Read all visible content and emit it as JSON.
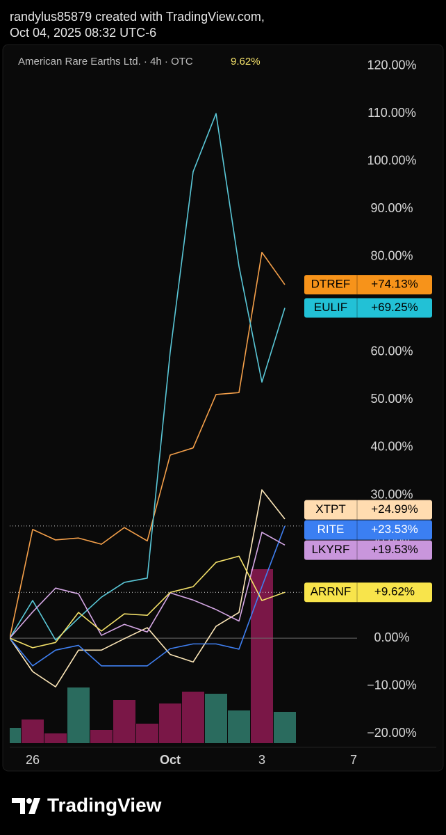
{
  "header": {
    "line1": "randylus85879 created with TradingView.com,",
    "line2": "Oct 04, 2025 08:32 UTC-6"
  },
  "chart_data": {
    "type": "line",
    "title": "American Rare Earths Ltd. · 4h · OTC",
    "change_label": "9.62%",
    "categories": [
      null,
      "26",
      null,
      null,
      null,
      null,
      null,
      "Oct",
      null,
      null,
      null,
      "3",
      null,
      null,
      null,
      "7"
    ],
    "ylim": [
      -22.3,
      123.6
    ],
    "yticks": [
      {
        "value": -20,
        "label": "−20.00%"
      },
      {
        "value": -10,
        "label": "−10.00%"
      },
      {
        "value": 0,
        "label": "0.00%"
      },
      {
        "value": 10,
        "label": "10.00%"
      },
      {
        "value": 20,
        "label": "20.00%"
      },
      {
        "value": 30,
        "label": "30.00%"
      },
      {
        "value": 40,
        "label": "40.00%"
      },
      {
        "value": 50,
        "label": "50.00%"
      },
      {
        "value": 60,
        "label": "60.00%"
      },
      {
        "value": 70,
        "label": "70.00%"
      },
      {
        "value": 80,
        "label": "80.00%"
      },
      {
        "value": 90,
        "label": "90.00%"
      },
      {
        "value": 100,
        "label": "100.00%"
      },
      {
        "value": 110,
        "label": "110.00%"
      },
      {
        "value": 120,
        "label": "120.00%"
      }
    ],
    "series": [
      {
        "name": "DTREF",
        "color": "#f5a04a",
        "tag_color": "#f7931a",
        "tag_text": "#000000",
        "values": [
          0,
          22.8,
          20.6,
          21,
          19.7,
          23.2,
          20.4,
          38.4,
          39.9,
          51.1,
          51.5,
          80.9,
          74.13,
          null,
          null,
          null
        ],
        "value_labels": [
          null,
          null,
          null,
          null,
          null,
          null,
          null,
          null,
          null,
          null,
          null,
          null,
          "+74.13%",
          null,
          null,
          null
        ]
      },
      {
        "name": "EULIF",
        "color": "#5ac8d8",
        "tag_color": "#22c1d6",
        "tag_text": "#000000",
        "values": [
          0,
          7.9,
          -0.4,
          4.2,
          8.6,
          11.7,
          12.6,
          60,
          97.8,
          110,
          78,
          53.7,
          69.25,
          null,
          null,
          null
        ],
        "value_labels": [
          null,
          null,
          null,
          null,
          null,
          null,
          null,
          null,
          null,
          null,
          null,
          null,
          "+69.25%",
          null,
          null,
          null
        ]
      },
      {
        "name": "XTPT",
        "color": "#fde7b8",
        "tag_color": "#ffdcb0",
        "tag_text": "#000000",
        "values": [
          0,
          -7,
          -10.2,
          -2.5,
          -2.5,
          -0.1,
          2.2,
          -3.4,
          -5,
          2.5,
          5.4,
          31.1,
          24.99,
          null,
          null,
          null
        ],
        "value_labels": [
          null,
          null,
          null,
          null,
          null,
          null,
          null,
          null,
          null,
          null,
          null,
          null,
          "+24.99%",
          null,
          null,
          null
        ]
      },
      {
        "name": "RITE",
        "color": "#3f7ff0",
        "tag_color": "#3b7ff2",
        "tag_text": "#ffffff",
        "price_line": true,
        "values": [
          0,
          -5.8,
          -2.5,
          -1.5,
          -5.8,
          -5.8,
          -5.8,
          -2.2,
          -1.2,
          -1.2,
          -2.3,
          10.8,
          23.53,
          null,
          null,
          null
        ],
        "value_labels": [
          null,
          null,
          null,
          null,
          null,
          null,
          null,
          null,
          null,
          null,
          null,
          null,
          "+23.53%",
          null,
          null,
          null
        ]
      },
      {
        "name": "LKYRF",
        "color": "#d6a8e6",
        "tag_color": "#c996dc",
        "tag_text": "#000000",
        "values": [
          0,
          5.5,
          10.5,
          9.3,
          0.6,
          2.9,
          1.3,
          9.5,
          8,
          6,
          3.6,
          22.2,
          19.53,
          null,
          null,
          null
        ],
        "value_labels": [
          null,
          null,
          null,
          null,
          null,
          null,
          null,
          null,
          null,
          null,
          null,
          null,
          "+19.53%",
          null,
          null,
          null
        ]
      },
      {
        "name": "ARRNF",
        "color": "#f5e26a",
        "tag_color": "#f8e44b",
        "tag_text": "#000000",
        "price_line": true,
        "values": [
          0,
          -2,
          -0.9,
          5.4,
          1.5,
          5.1,
          4.8,
          9.6,
          10.8,
          15.9,
          17.2,
          7.9,
          9.62,
          null,
          null,
          null
        ],
        "value_labels": [
          null,
          null,
          null,
          null,
          null,
          null,
          null,
          null,
          null,
          null,
          null,
          null,
          "+9.62%",
          null,
          null,
          null
        ]
      }
    ],
    "volume": {
      "values": [
        22,
        34,
        14,
        80,
        19,
        62,
        28,
        57,
        74,
        71,
        47,
        250,
        45,
        null,
        null,
        null
      ],
      "colors": [
        "#2a6b5e",
        "#7a1747",
        "#7a1747",
        "#2a6b5e",
        "#7a1747",
        "#7a1747",
        "#7a1747",
        "#7a1747",
        "#7a1747",
        "#2a6b5e",
        "#2a6b5e",
        "#7a1747",
        "#2a6b5e",
        null,
        null,
        null
      ]
    },
    "brand": "TradingView"
  }
}
